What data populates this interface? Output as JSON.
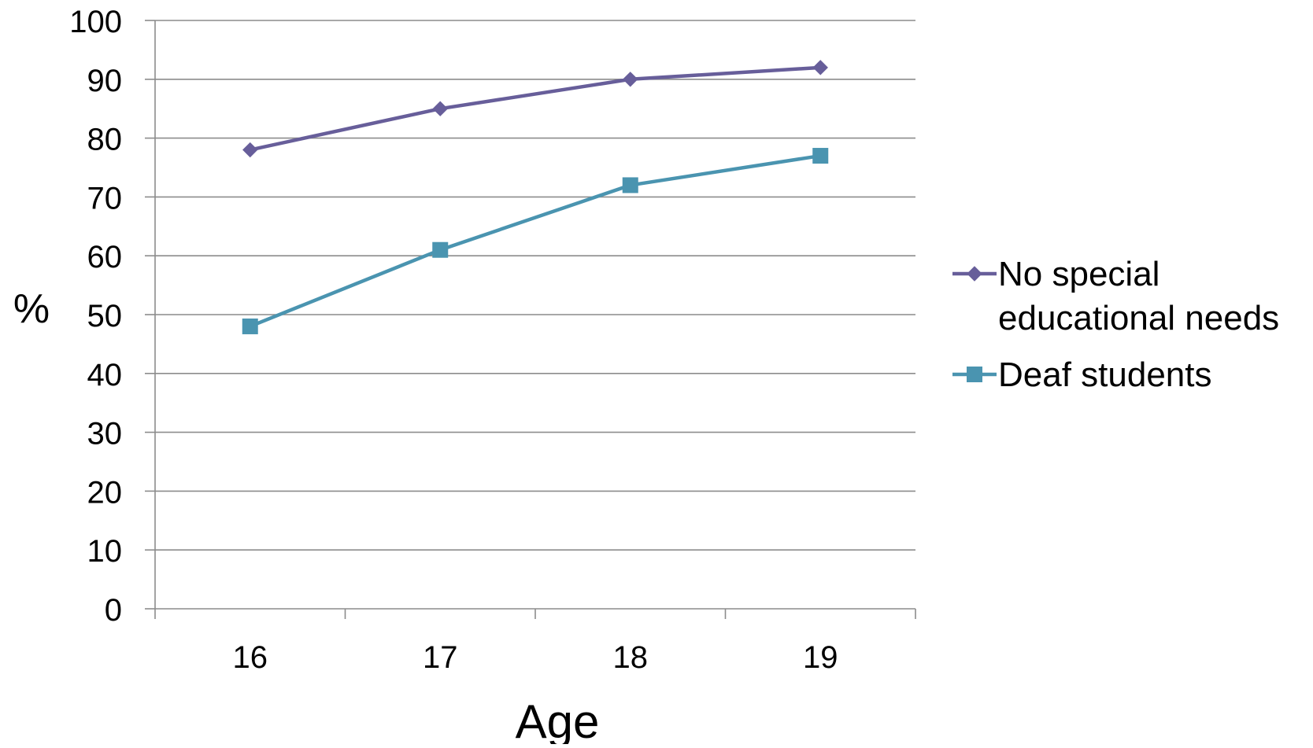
{
  "chart_data": {
    "type": "line",
    "title": "",
    "xlabel": "Age",
    "ylabel": "%",
    "categories": [
      "16",
      "17",
      "18",
      "19"
    ],
    "ylim": [
      0,
      100
    ],
    "yticks": [
      "0",
      "10",
      "20",
      "30",
      "40",
      "50",
      "60",
      "70",
      "80",
      "90",
      "100"
    ],
    "grid": "horizontal",
    "legend_position": "right",
    "series": [
      {
        "name": "No special educational needs",
        "legend_lines": [
          "No special",
          "educational needs"
        ],
        "values": [
          78,
          85,
          90,
          92
        ],
        "marker": "diamond",
        "color": "#675e9a"
      },
      {
        "name": "Deaf students",
        "legend_lines": [
          "Deaf students"
        ],
        "values": [
          48,
          61,
          72,
          77
        ],
        "marker": "square",
        "color": "#4a94b0"
      }
    ]
  }
}
